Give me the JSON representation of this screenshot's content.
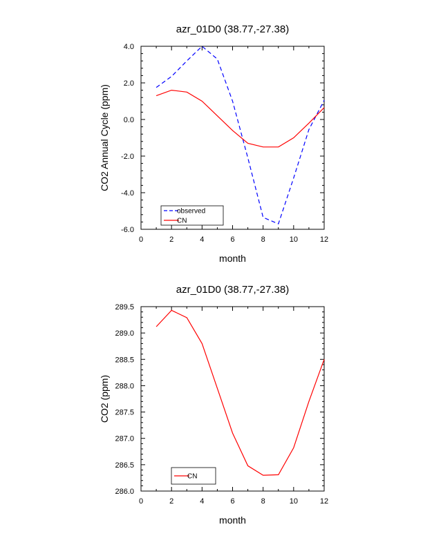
{
  "chart_data": [
    {
      "type": "line",
      "title": "azr_01D0 (38.77,-27.38)",
      "xlabel": "month",
      "ylabel": "CO2 Annual Cycle (ppm)",
      "xlim": [
        0,
        12
      ],
      "ylim": [
        -6,
        4
      ],
      "xticks": [
        0,
        2,
        4,
        6,
        8,
        10,
        12
      ],
      "xtick_labels": [
        "0",
        "2",
        "4",
        "6",
        "8",
        "10",
        "12"
      ],
      "yticks": [
        -6,
        -4,
        -2,
        0,
        2,
        4
      ],
      "ytick_labels": [
        "-6.0",
        "-4.0",
        "-2.0",
        "0.0",
        "2.0",
        "4.0"
      ],
      "x": [
        1,
        2,
        3,
        4,
        5,
        6,
        7,
        8,
        9,
        10,
        11,
        12
      ],
      "series": [
        {
          "name": "observed",
          "color": "#0000ff",
          "style": "dashed",
          "values": [
            1.75,
            2.35,
            3.2,
            4.0,
            3.3,
            1.0,
            -2.1,
            -5.35,
            -5.7,
            -3.2,
            -0.55,
            1.05
          ]
        },
        {
          "name": "CN",
          "color": "#ff0000",
          "style": "solid",
          "values": [
            1.3,
            1.6,
            1.5,
            1.0,
            0.2,
            -0.6,
            -1.3,
            -1.5,
            -1.5,
            -1.0,
            -0.2,
            0.65
          ]
        }
      ],
      "legend": "bottom-left"
    },
    {
      "type": "line",
      "title": "azr_01D0 (38.77,-27.38)",
      "xlabel": "month",
      "ylabel": "CO2 (ppm)",
      "xlim": [
        0,
        12
      ],
      "ylim": [
        286.0,
        289.5
      ],
      "xticks": [
        0,
        2,
        4,
        6,
        8,
        10,
        12
      ],
      "xtick_labels": [
        "0",
        "2",
        "4",
        "6",
        "8",
        "10",
        "12"
      ],
      "yticks": [
        286.0,
        286.5,
        287.0,
        287.5,
        288.0,
        288.5,
        289.0,
        289.5
      ],
      "ytick_labels": [
        "286.0",
        "286.5",
        "287.0",
        "287.5",
        "288.0",
        "288.5",
        "289.0",
        "289.5"
      ],
      "x": [
        1,
        2,
        3,
        4,
        5,
        6,
        7,
        8,
        9,
        10,
        11,
        12
      ],
      "series": [
        {
          "name": "CN",
          "color": "#ff0000",
          "style": "solid",
          "values": [
            289.12,
            289.43,
            289.29,
            288.8,
            287.95,
            287.1,
            286.48,
            286.3,
            286.31,
            286.82,
            287.7,
            288.5
          ]
        }
      ],
      "legend": "bottom-left"
    }
  ]
}
